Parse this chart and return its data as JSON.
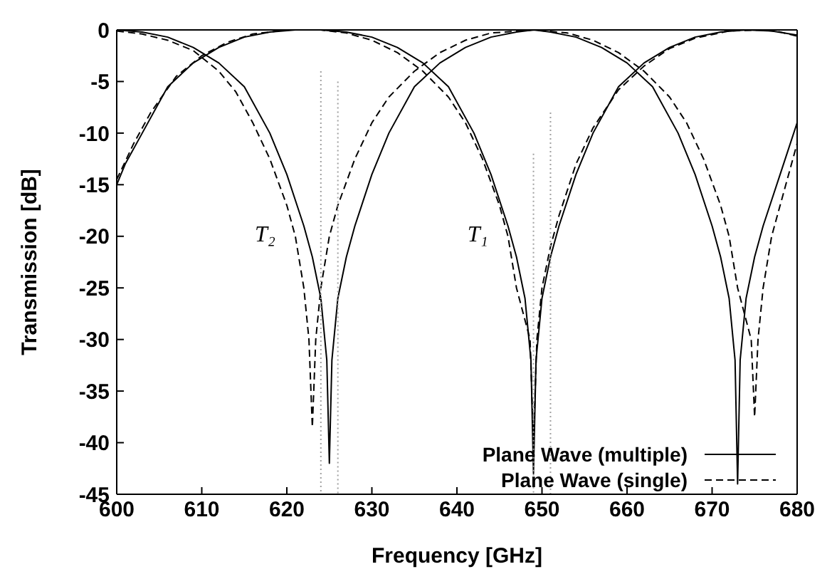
{
  "chart_data": {
    "type": "line",
    "xlabel": "Frequency [GHz]",
    "ylabel": "Transmission [dB]",
    "xlim": [
      600,
      680
    ],
    "ylim": [
      -45,
      0
    ],
    "xticks": [
      600,
      610,
      620,
      630,
      640,
      650,
      660,
      670,
      680
    ],
    "yticks": [
      -45,
      -40,
      -35,
      -30,
      -25,
      -20,
      -15,
      -10,
      -5,
      0
    ],
    "grid": false,
    "marker": "none",
    "legend": "bottom right",
    "annotations": [
      {
        "text": "T₂",
        "x": 621,
        "y": -20
      },
      {
        "text": "T₁",
        "x": 646,
        "y": -20
      }
    ],
    "series": [
      {
        "name": "Plane Wave (multiple)",
        "color": "#000000",
        "line_style": "solid",
        "x": [
          600,
          603,
          606,
          609,
          612,
          615,
          618,
          620,
          622,
          623,
          624,
          624.7,
          625,
          625.3,
          626,
          627,
          628,
          630,
          632,
          635,
          638,
          641,
          644,
          647,
          649,
          651,
          654,
          657,
          660,
          663,
          666,
          668,
          670,
          671,
          672,
          672.7,
          673,
          673.3,
          674,
          675,
          676,
          678,
          680
        ],
        "values": [
          0,
          -0.2,
          -0.7,
          -1.7,
          -3.2,
          -5.5,
          -10,
          -14,
          -19,
          -22,
          -26,
          -32,
          -42,
          -32,
          -26,
          -22,
          -19,
          -14,
          -10,
          -5.5,
          -3.2,
          -1.7,
          -0.7,
          -0.2,
          0,
          -0.2,
          -0.7,
          -1.7,
          -3.2,
          -5.5,
          -10,
          -14,
          -19,
          -22,
          -26,
          -32,
          -44,
          -32,
          -26,
          -22,
          -19,
          -14,
          -9
        ]
      },
      {
        "name": "Plane Wave (single)",
        "color": "#000000",
        "line_style": "dashed",
        "x": [
          600,
          603,
          606,
          609,
          612,
          614,
          616,
          618,
          620,
          621,
          622,
          622.6,
          623,
          623.4,
          624,
          625,
          626,
          628,
          630,
          632,
          635,
          638,
          641,
          644,
          649,
          653,
          656,
          659,
          662,
          665,
          667,
          669,
          671,
          672,
          673,
          674.6,
          675,
          675.4,
          676,
          677,
          678,
          680
        ],
        "values": [
          -0.1,
          -0.4,
          -1,
          -2,
          -4,
          -6,
          -9,
          -12.5,
          -17,
          -20,
          -25,
          -30,
          -38.5,
          -30,
          -25,
          -20,
          -17,
          -12.5,
          -9,
          -6.5,
          -4,
          -2.2,
          -1,
          -0.3,
          0,
          -0.3,
          -1,
          -2.2,
          -4,
          -6.5,
          -9,
          -12.5,
          -17,
          -20,
          -25,
          -30,
          -37.5,
          -30,
          -25,
          -20,
          -17,
          -11
        ]
      },
      {
        "color": "#000000",
        "line_style": "solid",
        "x": [
          600,
          601,
          603,
          606,
          609,
          612,
          615,
          618,
          621,
          624,
          627,
          630,
          633,
          636,
          639,
          642,
          644,
          646,
          647,
          648,
          648.7,
          649,
          649.3,
          650,
          651,
          652,
          654,
          656,
          659,
          662,
          665,
          668,
          671,
          674,
          677,
          680
        ],
        "values": [
          -15,
          -13,
          -10,
          -5.5,
          -3.2,
          -1.7,
          -0.7,
          -0.2,
          0,
          0,
          -0.2,
          -0.7,
          -1.7,
          -3.2,
          -5.5,
          -10,
          -14,
          -19,
          -22,
          -26,
          -32,
          -43,
          -32,
          -26,
          -22,
          -19,
          -14,
          -10,
          -5.5,
          -3.2,
          -1.7,
          -0.7,
          -0.2,
          0,
          -0.1,
          -0.5
        ]
      },
      {
        "color": "#000000",
        "line_style": "dashed",
        "x": [
          600,
          602,
          604,
          607,
          610,
          613,
          616,
          620,
          624,
          627,
          630,
          633,
          636,
          639,
          641,
          643,
          645,
          646,
          647,
          648.6,
          649,
          649.4,
          650,
          651,
          652,
          654,
          656,
          659,
          662,
          665,
          668,
          672,
          676,
          678,
          680
        ],
        "values": [
          -14.5,
          -11,
          -8,
          -4.5,
          -2.5,
          -1.2,
          -0.4,
          0,
          0,
          -0.3,
          -1,
          -2.2,
          -4,
          -6.5,
          -9,
          -12.5,
          -17,
          -20,
          -25,
          -30,
          -40,
          -30,
          -25,
          -21,
          -18,
          -13,
          -9.5,
          -5.8,
          -3.5,
          -1.8,
          -0.8,
          -0.1,
          0,
          -0.2,
          -0.6
        ]
      },
      {
        "color": "#a0a0a0",
        "line_style": "dotted",
        "x": [
          624,
          624
        ],
        "values": [
          -4,
          -45
        ]
      },
      {
        "color": "#a0a0a0",
        "line_style": "dotted",
        "x": [
          626,
          626
        ],
        "values": [
          -5,
          -45
        ]
      },
      {
        "color": "#a0a0a0",
        "line_style": "dotted",
        "x": [
          649,
          649
        ],
        "values": [
          -12,
          -45
        ]
      },
      {
        "color": "#a0a0a0",
        "line_style": "dotted",
        "x": [
          651,
          651
        ],
        "values": [
          -8,
          -45
        ]
      }
    ]
  }
}
